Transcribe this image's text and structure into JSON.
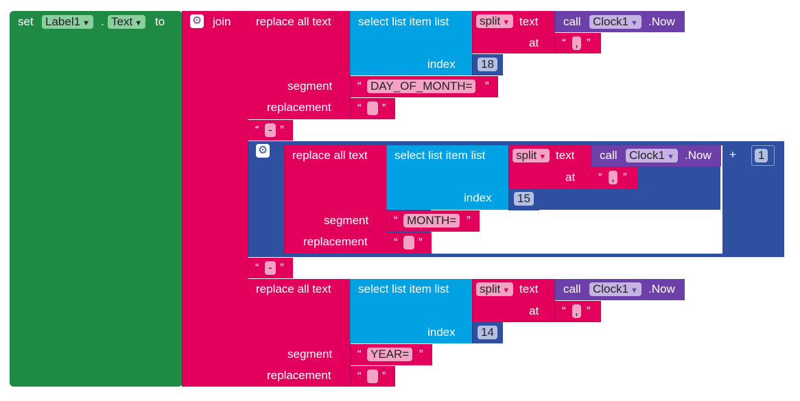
{
  "set_block": {
    "set": "set",
    "component": "Label1",
    "property": "Text",
    "to": "to"
  },
  "join": {
    "label": "join"
  },
  "replace": {
    "label": "replace all text",
    "segment": "segment",
    "replacement": "replacement"
  },
  "select": {
    "label": "select list item  list",
    "index": "index"
  },
  "split": {
    "label": "split",
    "text": "text",
    "at": "at"
  },
  "call": {
    "call": "call",
    "component": "Clock1",
    "method": ".Now"
  },
  "values": {
    "index1": "18",
    "index2": "15",
    "index3": "14",
    "plus_one": "1",
    "comma": ",",
    "dash": "-"
  },
  "segments": {
    "s1": "DAY_OF_MONTH=",
    "s2": "MONTH=",
    "s3": "YEAR="
  },
  "ops": {
    "plus": "+"
  },
  "quotes": {
    "open": "“",
    "close": "”"
  },
  "colors": {
    "set": "#1f8a44",
    "join": "#e2005c",
    "list": "#00a2e3",
    "component": "#6d3fa8",
    "math": "#2f4fa0"
  },
  "icons": {
    "gear": "gear-icon",
    "dropdown": "triangle-down-icon"
  }
}
